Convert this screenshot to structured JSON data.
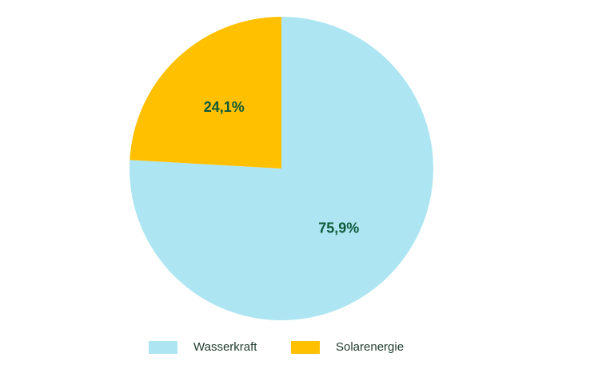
{
  "chart_data": {
    "type": "pie",
    "categories": [
      "Wasserkraft",
      "Solarenergie"
    ],
    "values": [
      75.9,
      24.1
    ],
    "data_labels": [
      "75,9%",
      "24,1%"
    ],
    "colors": [
      "#ade5f2",
      "#ffc000"
    ],
    "label_color": "#0e5a3a",
    "start_angle_deg": 0,
    "direction": "clockwise",
    "legend": {
      "position": "bottom",
      "entries": [
        "Wasserkraft",
        "Solarenergie"
      ]
    }
  }
}
